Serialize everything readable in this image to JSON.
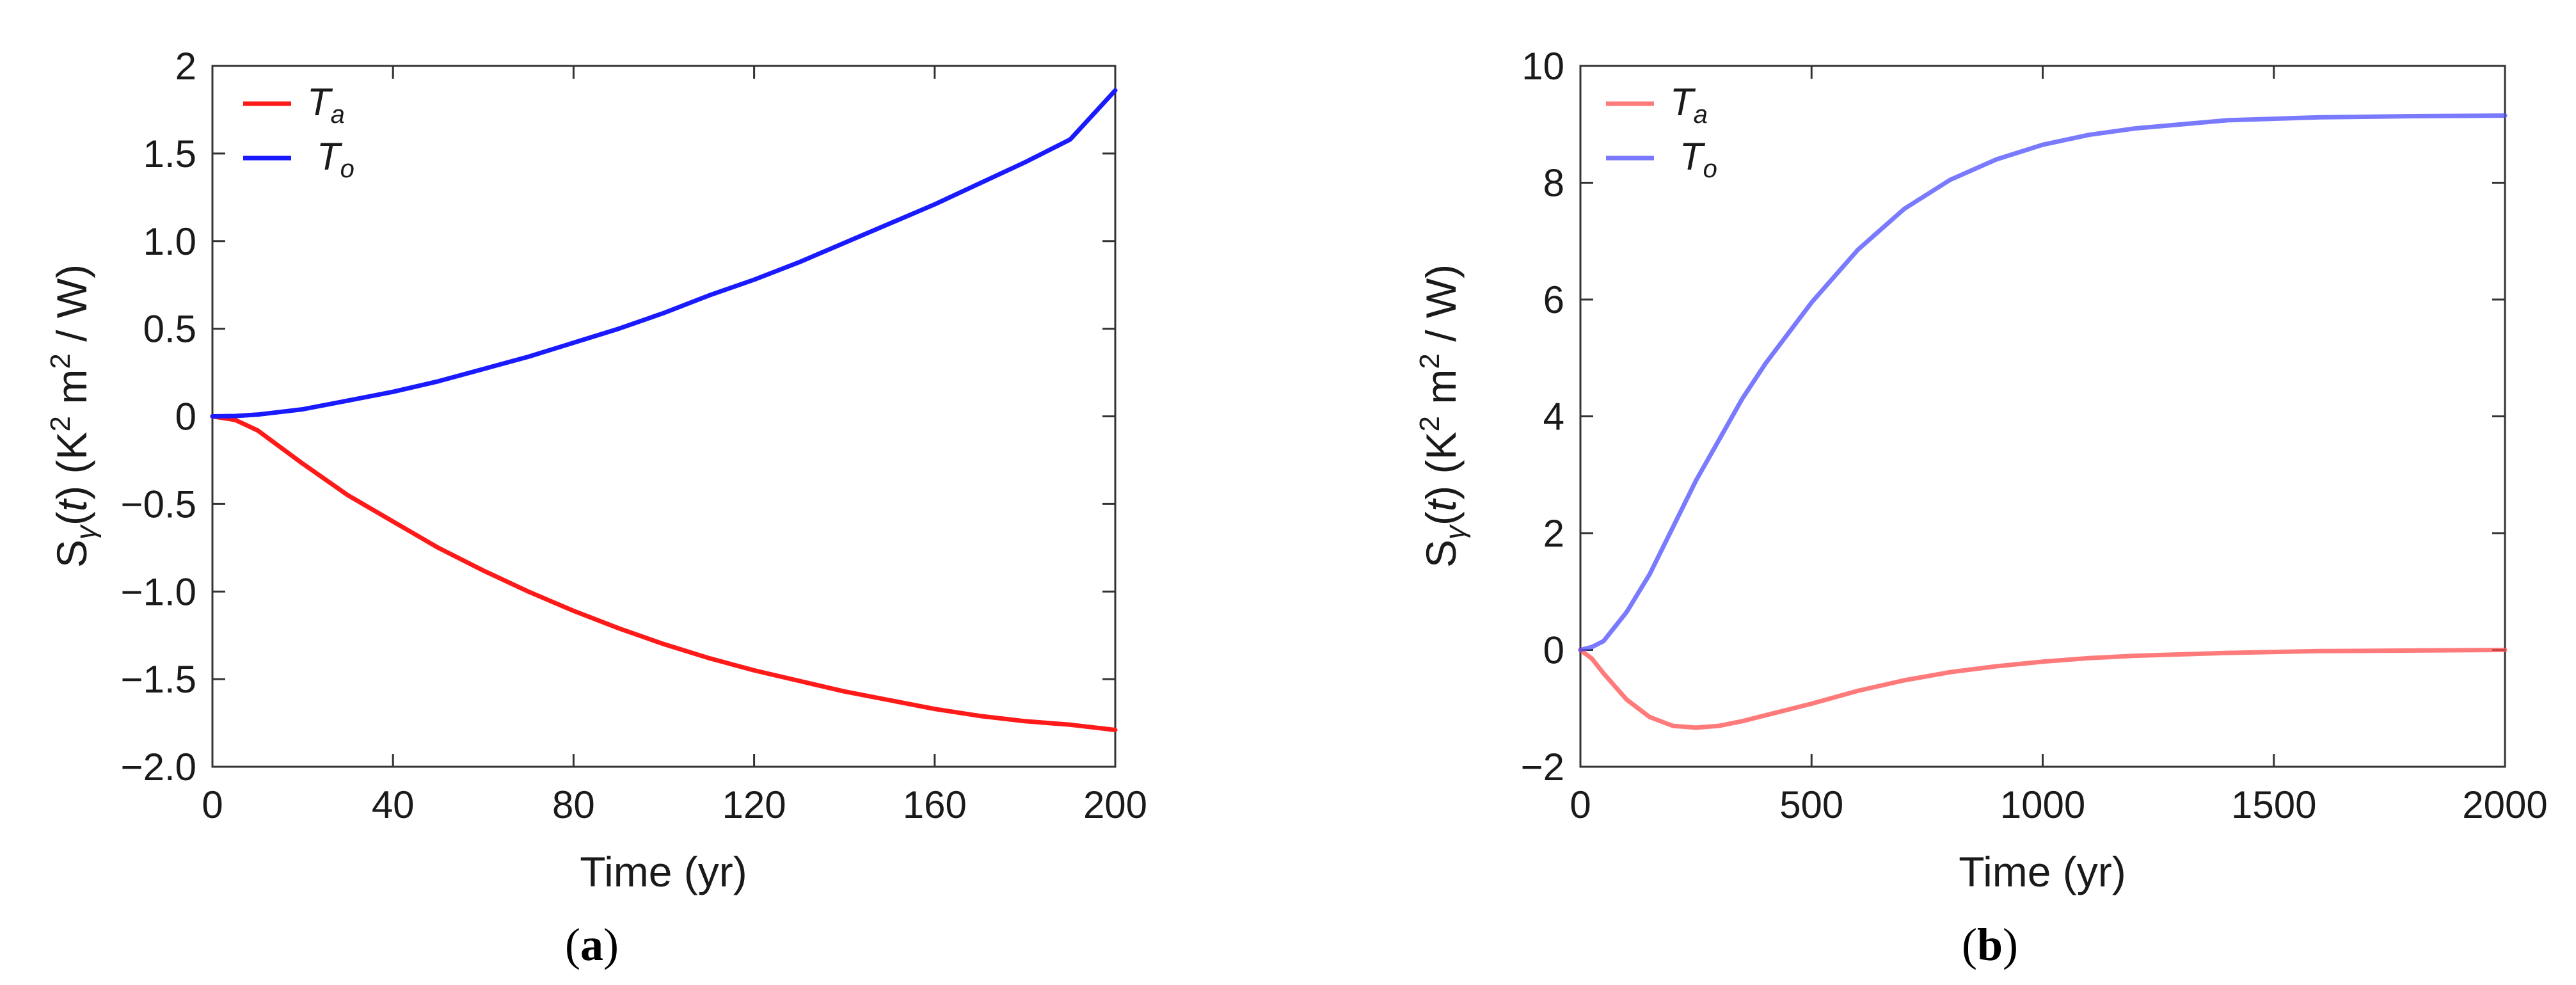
{
  "chart_data": [
    {
      "id": "a",
      "type": "line",
      "panel_label": "a",
      "xlabel": "Time (yr)",
      "ylabel": {
        "prefix": "S",
        "sub": "γ",
        "arg": "(t)",
        "unit_pre": "(K",
        "sup": "2",
        "unit_mid": " m",
        "sup2": "2",
        "unit_post": " / W)"
      },
      "xlim": [
        0,
        200
      ],
      "ylim": [
        -2.0,
        2.0
      ],
      "xticks": [
        0,
        40,
        80,
        120,
        160,
        200
      ],
      "xtick_labels": [
        "0",
        "40",
        "80",
        "120",
        "160",
        "200"
      ],
      "yticks": [
        -2.0,
        -1.5,
        -1.0,
        -0.5,
        0,
        0.5,
        1.0,
        1.5,
        2
      ],
      "ytick_labels": [
        "−2.0",
        "−1.5",
        "−1.0",
        "−0.5",
        "0",
        "0.5",
        "1.0",
        "1.5",
        "2"
      ],
      "legend_position": "top-left",
      "series": [
        {
          "name": "T",
          "sub": "a",
          "color": "#ff1a1a",
          "opacity": 1,
          "x": [
            0,
            5,
            10,
            20,
            30,
            40,
            50,
            60,
            70,
            80,
            90,
            100,
            110,
            120,
            130,
            140,
            150,
            160,
            170,
            180,
            190,
            200
          ],
          "y": [
            0,
            -0.02,
            -0.08,
            -0.27,
            -0.45,
            -0.6,
            -0.75,
            -0.88,
            -1.0,
            -1.11,
            -1.21,
            -1.3,
            -1.38,
            -1.45,
            -1.51,
            -1.57,
            -1.62,
            -1.67,
            -1.71,
            -1.74,
            -1.76,
            -1.79
          ]
        },
        {
          "name": "T",
          "sub": "o",
          "color": "#1a1aff",
          "opacity": 1,
          "x": [
            0,
            5,
            10,
            20,
            30,
            40,
            50,
            60,
            70,
            80,
            90,
            100,
            110,
            120,
            130,
            140,
            150,
            160,
            170,
            180,
            190,
            200
          ],
          "y": [
            0,
            0.002,
            0.01,
            0.04,
            0.09,
            0.14,
            0.2,
            0.27,
            0.34,
            0.42,
            0.5,
            0.59,
            0.69,
            0.78,
            0.88,
            0.99,
            1.1,
            1.21,
            1.33,
            1.45,
            1.58,
            1.86
          ]
        }
      ]
    },
    {
      "id": "b",
      "type": "line",
      "panel_label": "b",
      "xlabel": "Time (yr)",
      "ylabel": {
        "prefix": "S",
        "sub": "γ",
        "arg": "(t)",
        "unit_pre": "(K",
        "sup": "2",
        "unit_mid": " m",
        "sup2": "2",
        "unit_post": " / W)"
      },
      "xlim": [
        0,
        2000
      ],
      "ylim": [
        -2,
        10
      ],
      "xticks": [
        0,
        500,
        1000,
        1500,
        2000
      ],
      "xtick_labels": [
        "0",
        "500",
        "1000",
        "1500",
        "2000"
      ],
      "yticks": [
        -2,
        0,
        2,
        4,
        6,
        8,
        10
      ],
      "ytick_labels": [
        "−2",
        "0",
        "2",
        "4",
        "6",
        "8",
        "10"
      ],
      "legend_position": "top-left",
      "series": [
        {
          "name": "T",
          "sub": "a",
          "color": "#ff4d4d",
          "opacity": 0.75,
          "x": [
            0,
            25,
            50,
            100,
            150,
            200,
            250,
            300,
            350,
            400,
            500,
            600,
            700,
            800,
            900,
            1000,
            1100,
            1200,
            1400,
            1600,
            1800,
            2000
          ],
          "y": [
            0,
            -0.15,
            -0.4,
            -0.85,
            -1.15,
            -1.3,
            -1.33,
            -1.3,
            -1.22,
            -1.12,
            -0.92,
            -0.7,
            -0.52,
            -0.38,
            -0.28,
            -0.2,
            -0.14,
            -0.1,
            -0.05,
            -0.02,
            -0.01,
            0
          ]
        },
        {
          "name": "T",
          "sub": "o",
          "color": "#4d4dff",
          "opacity": 0.75,
          "x": [
            0,
            25,
            50,
            100,
            150,
            200,
            250,
            300,
            350,
            400,
            500,
            600,
            700,
            800,
            900,
            1000,
            1100,
            1200,
            1400,
            1600,
            1800,
            2000
          ],
          "y": [
            0,
            0.05,
            0.15,
            0.65,
            1.3,
            2.1,
            2.9,
            3.6,
            4.3,
            4.9,
            5.95,
            6.85,
            7.55,
            8.05,
            8.4,
            8.65,
            8.82,
            8.93,
            9.07,
            9.12,
            9.14,
            9.15
          ]
        }
      ]
    }
  ]
}
